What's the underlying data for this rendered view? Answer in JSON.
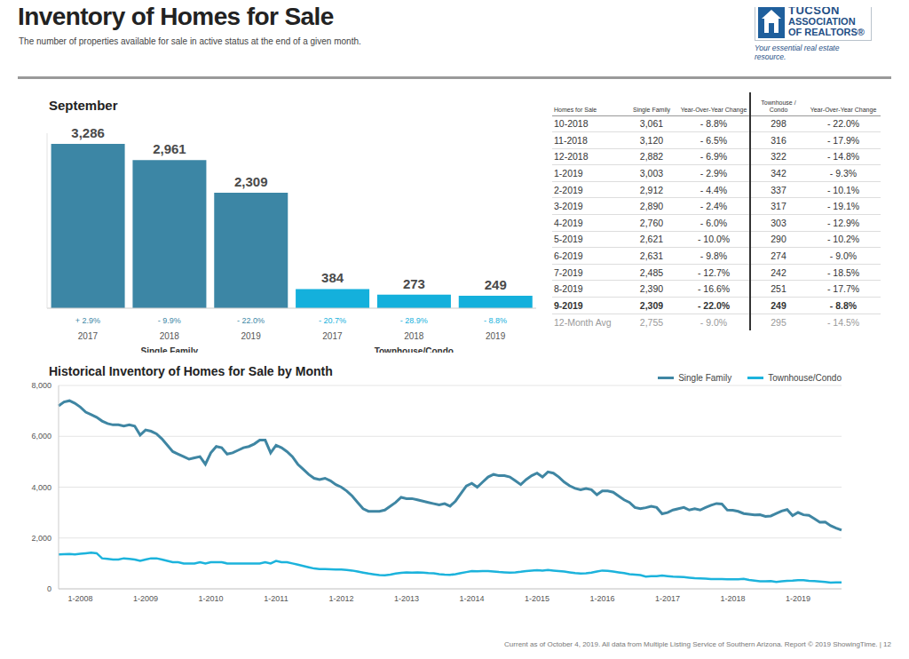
{
  "header": {
    "title": "Inventory of Homes for Sale",
    "subtitle": "The number of properties available for sale in active status at the end of a given month.",
    "logo": {
      "lines": [
        "TUCSON",
        "ASSOCIATION",
        "OF REALTORS®"
      ],
      "tagline": "Your essential real estate resource."
    }
  },
  "chart_data": [
    {
      "type": "bar",
      "title": "September",
      "categories": [
        "2017",
        "2018",
        "2019",
        "2017",
        "2018",
        "2019"
      ],
      "series": [
        {
          "name": "Single Family",
          "color": "#3c86a5",
          "values": [
            3286,
            2961,
            2309,
            null,
            null,
            null
          ],
          "value_labels": [
            "3,286",
            "2,961",
            "2,309",
            null,
            null,
            null
          ],
          "change_labels": [
            "+ 2.9%",
            "- 9.9%",
            "- 22.0%",
            null,
            null,
            null
          ]
        },
        {
          "name": "Townhouse/Condo",
          "color": "#14b0dc",
          "values": [
            null,
            null,
            null,
            384,
            273,
            249
          ],
          "value_labels": [
            null,
            null,
            null,
            "384",
            "273",
            "249"
          ],
          "change_labels": [
            null,
            null,
            null,
            "- 20.7%",
            "- 28.9%",
            "- 8.8%"
          ]
        }
      ],
      "stacked": true,
      "data_labels": true,
      "ylim": [
        0,
        3500
      ],
      "yticks": [],
      "tick_labels": "x"
    },
    {
      "type": "line",
      "title": "Historical Inventory of Homes for Sale by Month",
      "categories": [
        null,
        null,
        null,
        null,
        "1-2008",
        null,
        null,
        null,
        null,
        null,
        null,
        null,
        null,
        null,
        null,
        null,
        "1-2009",
        null,
        null,
        null,
        null,
        null,
        null,
        null,
        null,
        null,
        null,
        null,
        "1-2010",
        null,
        null,
        null,
        null,
        null,
        null,
        null,
        null,
        null,
        null,
        null,
        "1-2011",
        null,
        null,
        null,
        null,
        null,
        null,
        null,
        null,
        null,
        null,
        null,
        "1-2012",
        null,
        null,
        null,
        null,
        null,
        null,
        null,
        null,
        null,
        null,
        null,
        "1-2013",
        null,
        null,
        null,
        null,
        null,
        null,
        null,
        null,
        null,
        null,
        null,
        "1-2014",
        null,
        null,
        null,
        null,
        null,
        null,
        null,
        null,
        null,
        null,
        null,
        "1-2015",
        null,
        null,
        null,
        null,
        null,
        null,
        null,
        null,
        null,
        null,
        null,
        "1-2016",
        null,
        null,
        null,
        null,
        null,
        null,
        null,
        null,
        null,
        null,
        null,
        "1-2017",
        null,
        null,
        null,
        null,
        null,
        null,
        null,
        null,
        null,
        null,
        null,
        "1-2018",
        null,
        null,
        null,
        null,
        null,
        null,
        null,
        null,
        null,
        null,
        null,
        "1-2019",
        null,
        null,
        null,
        null,
        null,
        null,
        null,
        null
      ],
      "series": [
        {
          "name": "Single Family",
          "color": "#3f86a3",
          "values": [
            7200,
            7350,
            7400,
            7300,
            7150,
            6950,
            6850,
            6750,
            6600,
            6500,
            6450,
            6450,
            6400,
            6450,
            6400,
            6050,
            6250,
            6200,
            6100,
            5900,
            5650,
            5400,
            5300,
            5200,
            5100,
            5150,
            5200,
            4900,
            5350,
            5600,
            5550,
            5300,
            5350,
            5450,
            5550,
            5600,
            5700,
            5850,
            5850,
            5350,
            5650,
            5550,
            5400,
            5200,
            4900,
            4700,
            4500,
            4350,
            4300,
            4350,
            4250,
            4100,
            4000,
            3850,
            3650,
            3400,
            3150,
            3050,
            3050,
            3050,
            3100,
            3250,
            3400,
            3600,
            3550,
            3550,
            3500,
            3450,
            3400,
            3350,
            3300,
            3350,
            3250,
            3450,
            3750,
            4050,
            4150,
            4000,
            4200,
            4400,
            4500,
            4450,
            4450,
            4400,
            4250,
            4100,
            4300,
            4450,
            4550,
            4400,
            4600,
            4550,
            4400,
            4200,
            4050,
            3950,
            3900,
            3950,
            3900,
            3700,
            3850,
            3850,
            3800,
            3650,
            3500,
            3400,
            3200,
            3150,
            3193,
            3250,
            3200,
            2950,
            3000,
            3100,
            3150,
            3200,
            3100,
            3150,
            3100,
            3200,
            3286,
            3356,
            3337,
            3096,
            3093,
            3046,
            2961,
            2936,
            2912,
            2917,
            2846,
            2866,
            2961,
            3061,
            3120,
            2882,
            3003,
            2912,
            2890,
            2760,
            2621,
            2631,
            2485,
            2390,
            2309
          ]
        },
        {
          "name": "Townhouse/Condo",
          "color": "#1cb3dc",
          "values": [
            1350,
            1360,
            1370,
            1350,
            1380,
            1400,
            1420,
            1400,
            1200,
            1180,
            1150,
            1150,
            1200,
            1180,
            1150,
            1100,
            1150,
            1200,
            1200,
            1150,
            1100,
            1050,
            1050,
            1000,
            1000,
            1000,
            1050,
            1000,
            1050,
            1050,
            1050,
            1000,
            1000,
            1000,
            1000,
            1000,
            1000,
            1000,
            1050,
            1000,
            1100,
            1050,
            1050,
            1000,
            950,
            900,
            850,
            800,
            780,
            780,
            770,
            760,
            760,
            740,
            720,
            680,
            640,
            600,
            570,
            540,
            530,
            560,
            600,
            630,
            650,
            640,
            650,
            640,
            620,
            610,
            580,
            560,
            550,
            580,
            620,
            660,
            700,
            690,
            700,
            700,
            680,
            660,
            650,
            640,
            650,
            670,
            700,
            720,
            730,
            720,
            740,
            720,
            700,
            680,
            650,
            620,
            600,
            610,
            640,
            680,
            720,
            710,
            680,
            650,
            620,
            580,
            560,
            540,
            484,
            500,
            500,
            520,
            500,
            480,
            470,
            460,
            440,
            420,
            410,
            400,
            384,
            382,
            385,
            378,
            377,
            375,
            392,
            348,
            323,
            301,
            297,
            305,
            273,
            298,
            316,
            322,
            342,
            337,
            317,
            303,
            290,
            274,
            242,
            251,
            249
          ]
        }
      ],
      "ylim": [
        0,
        8000
      ],
      "yticks": [
        0,
        {
          "value": 2000,
          "label": "2,000"
        },
        {
          "value": 4000,
          "label": "4,000"
        },
        {
          "value": 6000,
          "label": "6,000"
        },
        {
          "value": 8000,
          "label": "8,000"
        }
      ],
      "grid": true,
      "legend": "top-right"
    }
  ],
  "table": {
    "header": [
      "Homes for Sale",
      "Single Family",
      "Year-Over-Year Change",
      "Townhouse / Condo",
      "Year-Over-Year Change"
    ],
    "rows": [
      [
        "10-2018",
        "3,061",
        "- 8.8%",
        "298",
        "- 22.0%"
      ],
      [
        "11-2018",
        "3,120",
        "- 6.5%",
        "316",
        "- 17.9%"
      ],
      [
        "12-2018",
        "2,882",
        "- 6.9%",
        "322",
        "- 14.8%"
      ],
      [
        "1-2019",
        "3,003",
        "- 2.9%",
        "342",
        "- 9.3%"
      ],
      [
        "2-2019",
        "2,912",
        "- 4.4%",
        "337",
        "- 10.1%"
      ],
      [
        "3-2019",
        "2,890",
        "- 2.4%",
        "317",
        "- 19.1%"
      ],
      [
        "4-2019",
        "2,760",
        "- 6.0%",
        "303",
        "- 12.9%"
      ],
      [
        "5-2019",
        "2,621",
        "- 10.0%",
        "290",
        "- 10.2%"
      ],
      [
        "6-2019",
        "2,631",
        "- 9.8%",
        "274",
        "- 9.0%"
      ],
      [
        "7-2019",
        "2,485",
        "- 12.7%",
        "242",
        "- 18.5%"
      ],
      [
        "8-2019",
        "2,390",
        "- 16.6%",
        "251",
        "- 17.7%"
      ],
      [
        "9-2019",
        "2,309",
        "- 22.0%",
        "249",
        "- 8.8%"
      ]
    ],
    "average": [
      "12-Month Avg",
      "2,755",
      "- 9.0%",
      "295",
      "- 14.5%"
    ]
  },
  "footer": "Current as of October 4, 2019. All data from Multiple Listing Service of Southern Arizona. Report © 2019 ShowingTime. | 12"
}
